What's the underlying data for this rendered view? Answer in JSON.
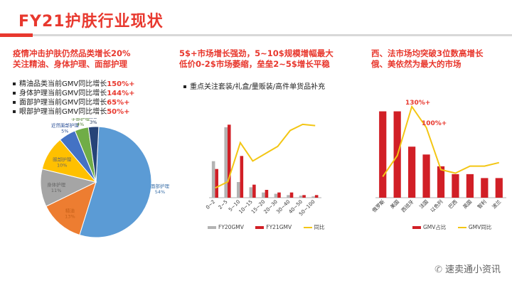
{
  "title": "FY21护肤行业现状",
  "left": {
    "heading_line1": "疫情冲击护肤仍然品类增长20%",
    "heading_line2": "关注精油、身体护理、面部护理",
    "bullets": [
      {
        "label": "精油品类当前GMV同比增长",
        "value": "150%+"
      },
      {
        "label": "身体护理当前GMV同比增长",
        "value": "144%+"
      },
      {
        "label": "面部护理当前GMV同比增长",
        "value": "65%+"
      },
      {
        "label": "眼部护理当前GMV同比增长",
        "value": "50%+"
      }
    ]
  },
  "middle": {
    "heading_line1": "5$+市场增长强劲，5~10$规模增幅最大",
    "heading_line2": "低价0-2$市场萎缩，垒垒2~5$增长平稳",
    "bullet": "重点关注套装/礼盒/量贩装/高件单货品补充",
    "legend": [
      "FY20GMV",
      "FY21GMV",
      "同比"
    ]
  },
  "right": {
    "heading_line1": "西、法市场均突破3位数高增长",
    "heading_line2": "俄、美依然为最大的市场",
    "annotation_1": "130%+",
    "annotation_2": "100%+",
    "legend": [
      "GMV占比",
      "GMV同比"
    ]
  },
  "watermark": "速卖通小资讯",
  "colors": {
    "accent": "#e8382e",
    "bar_red": "#d11f26",
    "bar_gray": "#b3b3b3",
    "line_yellow": "#f3c614"
  },
  "chart_data": [
    {
      "type": "pie",
      "categories": [
        "面部护理",
        "精油",
        "身体护理",
        "眼部护理",
        "近然面部护理",
        "手部护理",
        "唇部"
      ],
      "values": [
        54,
        13,
        11,
        10,
        5,
        4,
        3
      ],
      "value_labels": [
        "54%",
        "13%",
        "11%",
        "10%",
        "5%",
        "4%",
        "3%"
      ],
      "colors": [
        "#5b9bd5",
        "#ed7d31",
        "#a5a5a5",
        "#ffc000",
        "#4472c4",
        "#70ad47",
        "#264478"
      ]
    },
    {
      "type": "bar",
      "categories": [
        "0~2",
        "2~5",
        "5~10",
        "10~15",
        "15~20",
        "20~30",
        "30~40",
        "40~50",
        "50~100"
      ],
      "series": [
        {
          "name": "FY20GMV",
          "values": [
            14,
            27,
            6,
            4,
            2,
            1.5,
            1,
            0.8,
            0.5
          ]
        },
        {
          "name": "FY21GMV",
          "values": [
            11,
            28,
            16,
            5,
            3,
            2,
            2,
            1,
            1
          ]
        },
        {
          "name": "同比",
          "type": "line",
          "values": [
            -20,
            5,
            165,
            90,
            120,
            150,
            215,
            240,
            235
          ]
        }
      ],
      "ylim": [
        0,
        30
      ],
      "y2lim": [
        -60,
        260
      ]
    },
    {
      "type": "bar",
      "categories": [
        "俄罗斯",
        "美国",
        "西班牙",
        "法国",
        "以色列",
        "巴西",
        "英国",
        "智利",
        "波兰"
      ],
      "series": [
        {
          "name": "GMV占比",
          "values": [
            22,
            22,
            13,
            11,
            8,
            6,
            6,
            5,
            5
          ]
        },
        {
          "name": "GMV同比",
          "type": "line",
          "values": [
            30,
            60,
            130,
            100,
            40,
            35,
            45,
            45,
            50
          ]
        }
      ],
      "ylim": [
        0,
        25
      ],
      "y2lim": [
        0,
        140
      ]
    }
  ]
}
